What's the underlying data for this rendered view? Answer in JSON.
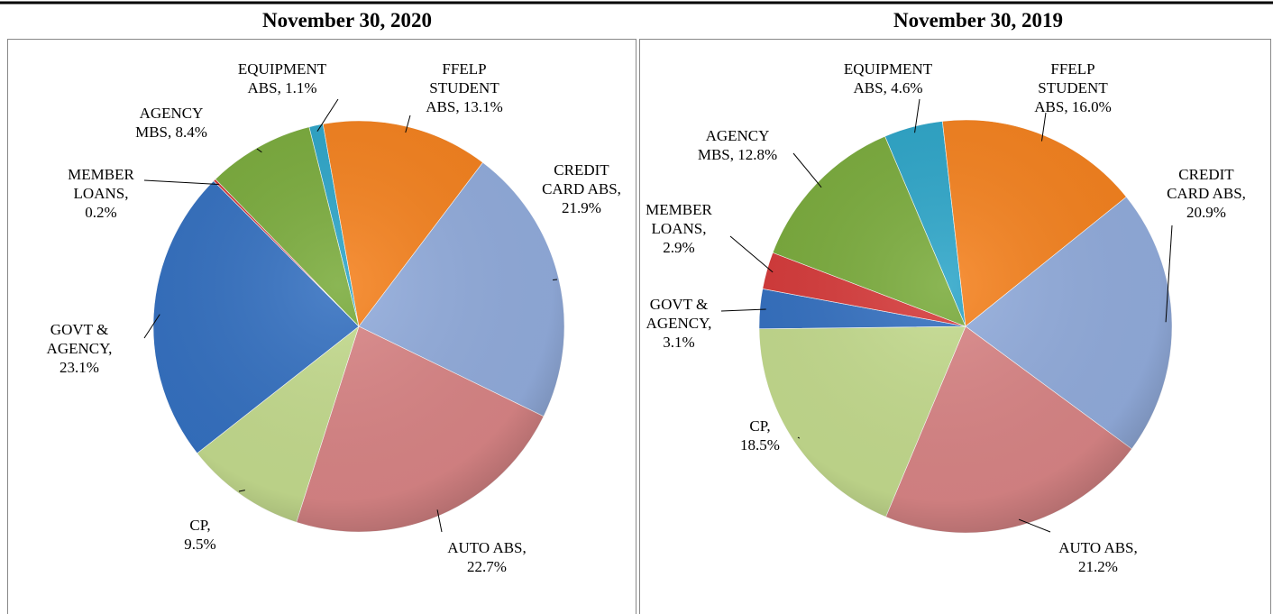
{
  "chart_data": [
    {
      "type": "pie",
      "title": "November 30, 2020",
      "categories": [
        "EQUIPMENT ABS,",
        "FFELP STUDENT ABS,",
        "CREDIT CARD ABS,",
        "AUTO ABS,",
        "CP,",
        "GOVT & AGENCY,",
        "MEMBER LOANS,",
        "AGENCY MBS,"
      ],
      "values": [
        1.1,
        13.1,
        21.9,
        22.7,
        9.5,
        23.1,
        0.2,
        8.4
      ],
      "value_labels": [
        "1.1%",
        "13.1%",
        "21.9%",
        "22.7%",
        "9.5%",
        "23.1%",
        "0.2%",
        "8.4%"
      ],
      "colors": [
        "#2ea6c9",
        "#f5821f",
        "#92acdc",
        "#d98586",
        "#c4db8e",
        "#3571c1",
        "#d63b3b",
        "#7bac3d"
      ]
    },
    {
      "type": "pie",
      "title": "November 30, 2019",
      "categories": [
        "EQUIPMENT ABS,",
        "FFELP STUDENT ABS,",
        "CREDIT CARD ABS,",
        "AUTO ABS,",
        "CP,",
        "GOVT & AGENCY,",
        "MEMBER LOANS,",
        "AGENCY MBS,"
      ],
      "values": [
        4.6,
        16.0,
        20.9,
        21.2,
        18.5,
        3.1,
        2.9,
        12.8
      ],
      "value_labels": [
        "4.6%",
        "16.0%",
        "20.9%",
        "21.2%",
        "18.5%",
        "3.1%",
        "2.9%",
        "12.8%"
      ],
      "colors": [
        "#2ea6c9",
        "#f5821f",
        "#92acdc",
        "#d98586",
        "#c4db8e",
        "#3571c1",
        "#d63b3b",
        "#7bac3d"
      ]
    }
  ]
}
